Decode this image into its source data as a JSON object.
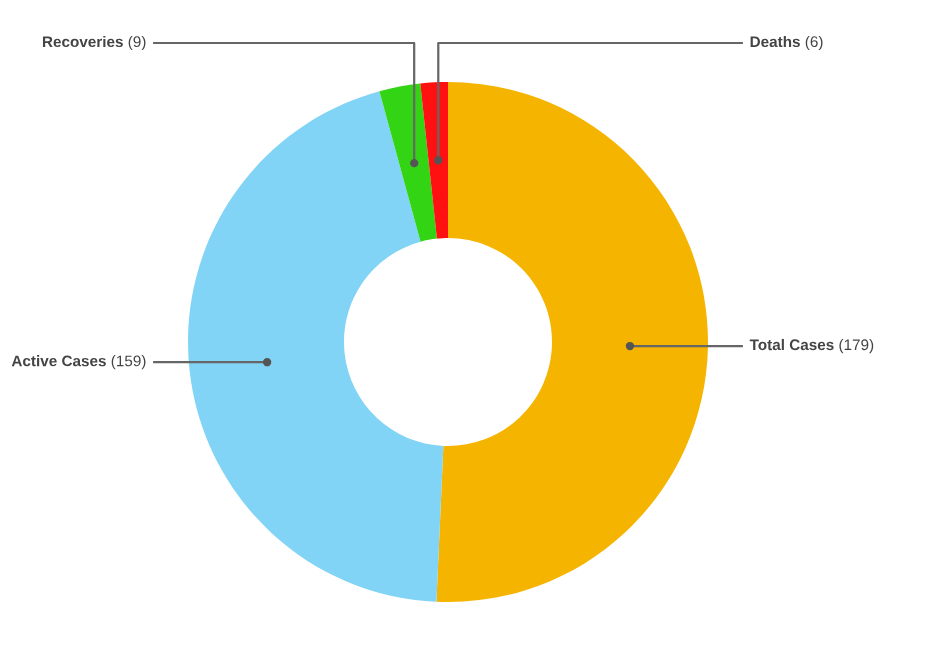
{
  "chart_data": {
    "type": "donut",
    "categories": [
      "Total Cases",
      "Active Cases",
      "Recoveries",
      "Deaths"
    ],
    "values": [
      179,
      159,
      9,
      6
    ],
    "value_labels": [
      "(179)",
      "(159)",
      "(9)",
      "(6)"
    ],
    "colors": [
      "#f5b400",
      "#81d4f5",
      "#33d414",
      "#ff1111"
    ]
  }
}
